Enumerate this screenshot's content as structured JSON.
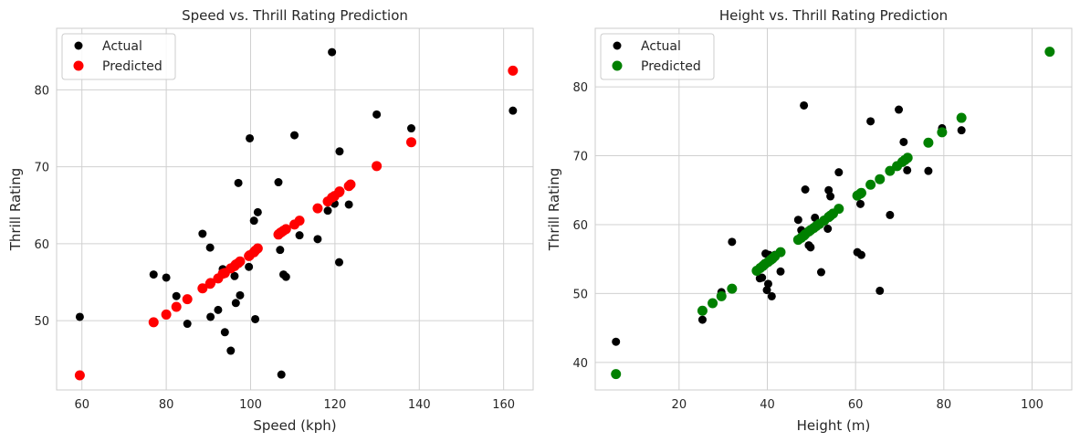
{
  "chart_data": [
    {
      "type": "scatter",
      "title": "Speed vs. Thrill Rating Prediction",
      "xlabel": "Speed (kph)",
      "ylabel": "Thrill Rating",
      "xlim": [
        54,
        167
      ],
      "ylim": [
        41,
        88
      ],
      "xticks": [
        60,
        80,
        100,
        120,
        140,
        160
      ],
      "yticks": [
        50,
        60,
        70,
        80
      ],
      "grid": true,
      "legend": "top-left",
      "series": [
        {
          "name": "Actual",
          "color": "#000000",
          "points": [
            [
              59.5,
              50.5
            ],
            [
              77,
              56
            ],
            [
              80,
              55.6
            ],
            [
              82.4,
              53.2
            ],
            [
              85,
              49.6
            ],
            [
              88.6,
              61.3
            ],
            [
              90.4,
              59.5
            ],
            [
              90.5,
              50.5
            ],
            [
              92.3,
              51.4
            ],
            [
              93.4,
              56.7
            ],
            [
              93.9,
              48.5
            ],
            [
              95.3,
              46.1
            ],
            [
              96.2,
              55.8
            ],
            [
              96.5,
              52.3
            ],
            [
              97.1,
              67.9
            ],
            [
              97.5,
              53.3
            ],
            [
              99.6,
              57
            ],
            [
              99.8,
              73.7
            ],
            [
              100.8,
              63
            ],
            [
              101.1,
              50.2
            ],
            [
              101.7,
              64.1
            ],
            [
              106.6,
              68
            ],
            [
              107,
              59.2
            ],
            [
              107.3,
              43
            ],
            [
              107.8,
              56
            ],
            [
              108.4,
              55.7
            ],
            [
              110.4,
              74.1
            ],
            [
              111.6,
              61.1
            ],
            [
              115.9,
              60.6
            ],
            [
              118.3,
              64.3
            ],
            [
              119.3,
              84.9
            ],
            [
              119.9,
              65.2
            ],
            [
              121,
              57.6
            ],
            [
              121.1,
              72
            ],
            [
              123.3,
              65.1
            ],
            [
              129.9,
              76.8
            ],
            [
              138.1,
              75
            ],
            [
              162.2,
              77.3
            ]
          ]
        },
        {
          "name": "Predicted",
          "color": "#ff0000",
          "points": [
            [
              59.5,
              42.9
            ],
            [
              77,
              49.8
            ],
            [
              80,
              50.8
            ],
            [
              82.4,
              51.8
            ],
            [
              85,
              52.8
            ],
            [
              88.6,
              54.2
            ],
            [
              90.4,
              54.8
            ],
            [
              90.5,
              54.9
            ],
            [
              92.3,
              55.5
            ],
            [
              93.4,
              56.1
            ],
            [
              93.9,
              56.2
            ],
            [
              95.3,
              56.8
            ],
            [
              96.2,
              57.1
            ],
            [
              96.5,
              57.3
            ],
            [
              97.1,
              57.5
            ],
            [
              97.5,
              57.7
            ],
            [
              99.6,
              58.4
            ],
            [
              99.8,
              58.5
            ],
            [
              100.8,
              58.9
            ],
            [
              101.1,
              59.1
            ],
            [
              101.7,
              59.4
            ],
            [
              106.6,
              61.2
            ],
            [
              107,
              61.4
            ],
            [
              107.3,
              61.5
            ],
            [
              107.8,
              61.7
            ],
            [
              108.4,
              61.9
            ],
            [
              110.4,
              62.5
            ],
            [
              111.6,
              63
            ],
            [
              115.9,
              64.6
            ],
            [
              118.3,
              65.5
            ],
            [
              119.3,
              66
            ],
            [
              119.9,
              66.2
            ],
            [
              121,
              66.7
            ],
            [
              121.1,
              66.8
            ],
            [
              123.3,
              67.5
            ],
            [
              123.7,
              67.7
            ],
            [
              129.9,
              70.1
            ],
            [
              138.1,
              73.2
            ],
            [
              162.2,
              82.5
            ]
          ]
        }
      ]
    },
    {
      "type": "scatter",
      "title": "Height vs. Thrill Rating Prediction",
      "xlabel": "Height (m)",
      "ylabel": "Thrill Rating",
      "xlim": [
        1,
        109
      ],
      "ylim": [
        36,
        88.5
      ],
      "xticks": [
        20,
        40,
        60,
        80,
        100
      ],
      "yticks": [
        40,
        50,
        60,
        70,
        80
      ],
      "grid": true,
      "legend": "top-left",
      "series": [
        {
          "name": "Actual",
          "color": "#000000",
          "points": [
            [
              5.7,
              43
            ],
            [
              25.3,
              46.2
            ],
            [
              29.6,
              50.2
            ],
            [
              32,
              57.5
            ],
            [
              38.3,
              52.2
            ],
            [
              38.8,
              52.3
            ],
            [
              39.6,
              55.8
            ],
            [
              39.9,
              50.5
            ],
            [
              40.2,
              51.4
            ],
            [
              40.4,
              55.6
            ],
            [
              41,
              49.6
            ],
            [
              41.7,
              55.6
            ],
            [
              43,
              53.2
            ],
            [
              47,
              60.7
            ],
            [
              47.7,
              59.2
            ],
            [
              48.3,
              77.3
            ],
            [
              48.6,
              65.1
            ],
            [
              49.4,
              57
            ],
            [
              49.8,
              56.7
            ],
            [
              50.8,
              61
            ],
            [
              52.2,
              53.1
            ],
            [
              53.7,
              59.4
            ],
            [
              53.9,
              65
            ],
            [
              54.3,
              64.1
            ],
            [
              56.2,
              67.6
            ],
            [
              60.4,
              56
            ],
            [
              61.1,
              63
            ],
            [
              61.3,
              55.6
            ],
            [
              63.4,
              75
            ],
            [
              65.5,
              50.4
            ],
            [
              67.8,
              61.4
            ],
            [
              69.8,
              76.7
            ],
            [
              70.9,
              72
            ],
            [
              71.7,
              67.9
            ],
            [
              76.5,
              67.8
            ],
            [
              79.6,
              74
            ],
            [
              84,
              73.7
            ],
            [
              104,
              85
            ]
          ]
        },
        {
          "name": "Predicted",
          "color": "#008000",
          "points": [
            [
              5.7,
              38.3
            ],
            [
              25.3,
              47.5
            ],
            [
              27.6,
              48.6
            ],
            [
              29.6,
              49.6
            ],
            [
              32,
              50.7
            ],
            [
              37.6,
              53.3
            ],
            [
              38.4,
              53.7
            ],
            [
              39,
              54
            ],
            [
              39.5,
              54.3
            ],
            [
              40.2,
              54.6
            ],
            [
              40.8,
              54.9
            ],
            [
              41.2,
              55.1
            ],
            [
              41.7,
              55.4
            ],
            [
              43,
              56
            ],
            [
              47,
              57.8
            ],
            [
              47.7,
              58.1
            ],
            [
              48.3,
              58.4
            ],
            [
              48.6,
              58.6
            ],
            [
              49.4,
              59
            ],
            [
              49.8,
              59.2
            ],
            [
              50.5,
              59.5
            ],
            [
              51.1,
              59.8
            ],
            [
              51.8,
              60.1
            ],
            [
              52.9,
              60.6
            ],
            [
              53.9,
              61.1
            ],
            [
              54.3,
              61.3
            ],
            [
              54.9,
              61.6
            ],
            [
              56.2,
              62.3
            ],
            [
              60.4,
              64.2
            ],
            [
              61.1,
              64.5
            ],
            [
              61.3,
              64.6
            ],
            [
              63.4,
              65.8
            ],
            [
              65.5,
              66.6
            ],
            [
              67.8,
              67.8
            ],
            [
              69.4,
              68.5
            ],
            [
              70.6,
              69.1
            ],
            [
              71.2,
              69.4
            ],
            [
              71.8,
              69.7
            ],
            [
              76.5,
              71.9
            ],
            [
              79.6,
              73.4
            ],
            [
              84,
              75.5
            ],
            [
              104,
              85.1
            ]
          ]
        }
      ]
    }
  ]
}
